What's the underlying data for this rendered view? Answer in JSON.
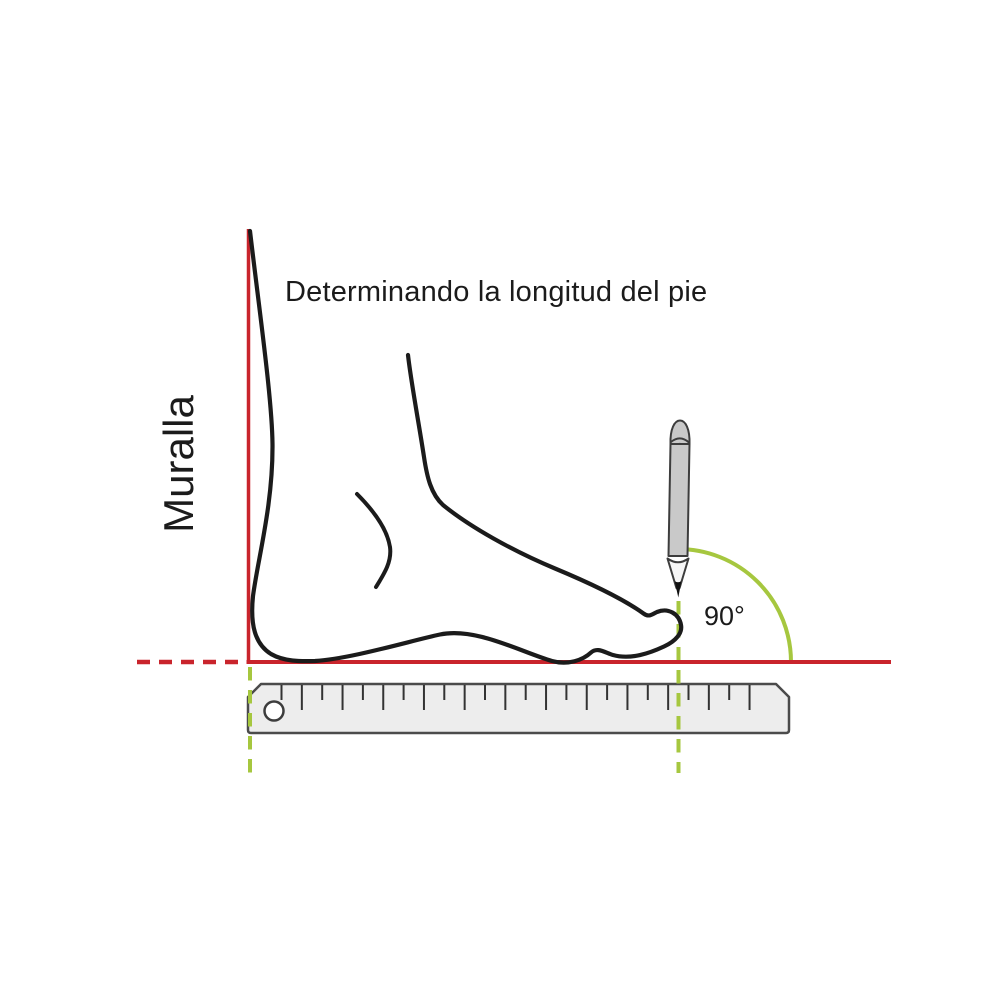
{
  "title": "Determinando la longitud del pie",
  "labels": {
    "wall": "Muralla",
    "angle": "90°"
  },
  "colors": {
    "line-red": "#c9242c",
    "guide-green": "#a6c73f",
    "ink-black": "#1b1b1b",
    "pencil-gray": "#c9c9c9",
    "pencil-wood": "#f6f6f6",
    "pencil-outline": "#3d3d3d",
    "ruler-fill": "#ededed",
    "ruler-stroke": "#4b4b4b",
    "tick-color": "#333333"
  }
}
